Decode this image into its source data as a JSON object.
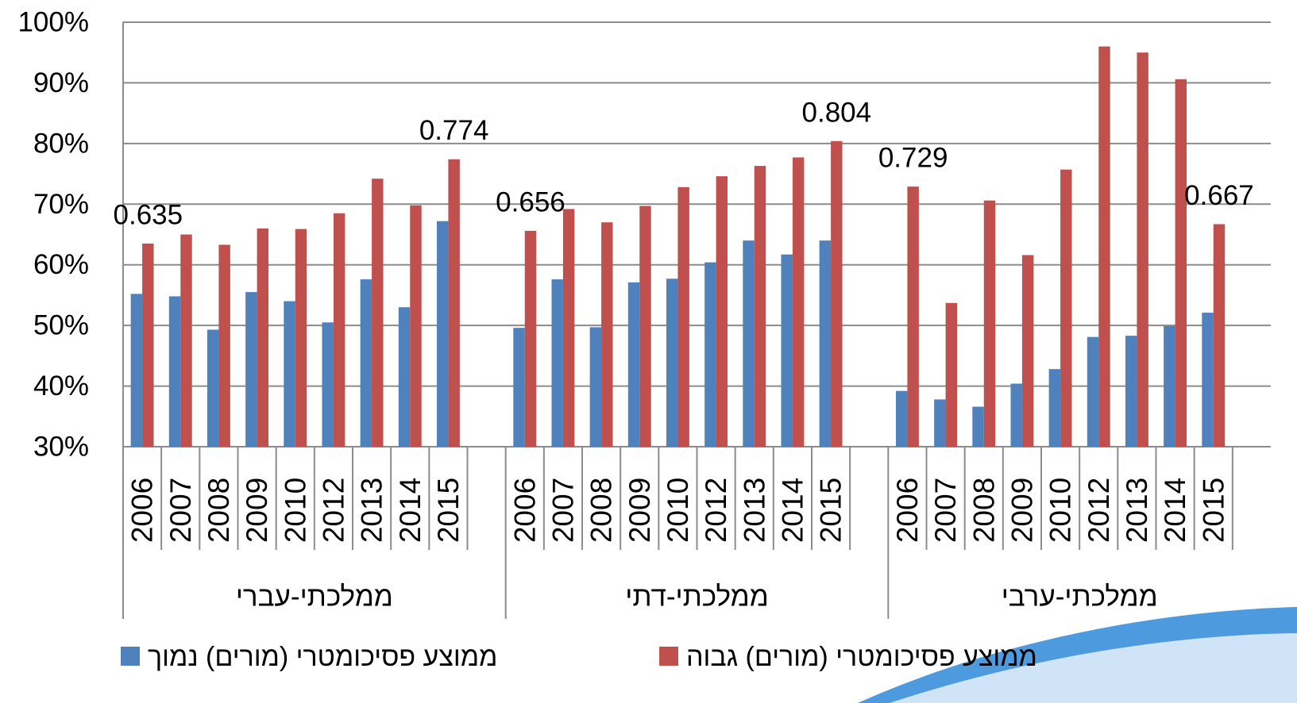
{
  "chart_data": {
    "type": "bar",
    "categories": [
      "2006",
      "2007",
      "2008",
      "2009",
      "2010",
      "2012",
      "2013",
      "2014",
      "2015",
      "2006",
      "2007",
      "2008",
      "2009",
      "2010",
      "2012",
      "2013",
      "2014",
      "2015",
      "2006",
      "2007",
      "2008",
      "2009",
      "2010",
      "2012",
      "2013",
      "2014",
      "2015"
    ],
    "category_groups": [
      "ממלכתי-עברי",
      "ממלכתי-דתי",
      "ממלכתי-ערבי"
    ],
    "series": [
      {
        "name": "ממוצע פסיכומטרי (מורים) נמוך",
        "color": "#4f81bd",
        "values": [
          55.2,
          54.8,
          49.3,
          55.5,
          54.0,
          50.5,
          57.6,
          53.0,
          67.2,
          49.6,
          57.6,
          49.7,
          57.1,
          57.7,
          60.4,
          64.0,
          61.7,
          64.0,
          39.2,
          37.8,
          36.6,
          40.4,
          42.8,
          48.1,
          48.3,
          49.9,
          52.1
        ]
      },
      {
        "name": "ממוצע פסיכומטרי (מורים) גבוה",
        "color": "#c0504d",
        "values": [
          63.5,
          65.0,
          63.3,
          66.0,
          65.9,
          68.5,
          74.2,
          69.8,
          77.4,
          65.6,
          69.2,
          67.0,
          69.7,
          72.8,
          74.6,
          76.3,
          77.7,
          80.4,
          72.9,
          53.7,
          70.6,
          61.6,
          75.7,
          96.0,
          95.0,
          90.6,
          66.7
        ],
        "value_labels": [
          "0.635",
          null,
          null,
          null,
          null,
          null,
          null,
          null,
          "0.774",
          "0.656",
          null,
          null,
          null,
          null,
          null,
          null,
          null,
          "0.804",
          "0.729",
          null,
          null,
          null,
          null,
          null,
          null,
          null,
          "0.667"
        ]
      }
    ],
    "ylim": [
      30,
      100
    ],
    "yticks": [
      {
        "value": 30,
        "label": "30%"
      },
      {
        "value": 40,
        "label": "40%"
      },
      {
        "value": 50,
        "label": "50%"
      },
      {
        "value": 60,
        "label": "60%"
      },
      {
        "value": 70,
        "label": "70%"
      },
      {
        "value": 80,
        "label": "80%"
      },
      {
        "value": 90,
        "label": "90%"
      },
      {
        "value": 100,
        "label": "100%"
      }
    ],
    "grid": true,
    "legend": "bottom"
  }
}
